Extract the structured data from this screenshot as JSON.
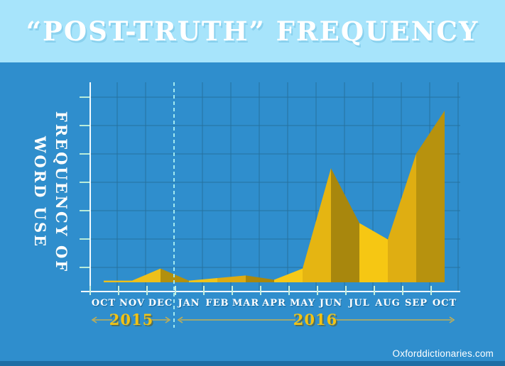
{
  "header": {
    "title": "“POST-TRUTH” FREQUENCY"
  },
  "ylabel": {
    "line1": "FREQUENCY OF",
    "line2": "WORD USE"
  },
  "footer": {
    "credit": "Oxforddictionaries.com"
  },
  "colors": {
    "header_bg": "#a7e4fb",
    "body_bg": "#2f8ecd",
    "bottom_band": "#1e6da4",
    "gridline": "#26719f",
    "axis": "#f2fbff",
    "y_tick": "#b9ecd9",
    "x_tick": "#c4eede",
    "divider_dash": "#a2e9f0",
    "year_text": "#f3c313",
    "year_arrow": "#c3af54",
    "title_text": "#ffffff",
    "month_text": "#ffffff"
  },
  "chart_data": {
    "type": "area",
    "title": "“POST-TRUTH” FREQUENCY",
    "ylabel": "FREQUENCY OF WORD USE",
    "xlabel": "",
    "x_categories": [
      "OCT 2015",
      "NOV 2015",
      "DEC 2015",
      "JAN 2016",
      "FEB 2016",
      "MAR 2016",
      "APR 2016",
      "MAY 2016",
      "JUN 2016",
      "JUL 2016",
      "AUG 2016",
      "SEP 2016",
      "OCT 2016"
    ],
    "month_labels": [
      "OCT",
      "NOV",
      "DEC",
      "JAN",
      "FEB",
      "MAR",
      "APR",
      "MAY",
      "JUN",
      "JUL",
      "AUG",
      "SEP",
      "OCT"
    ],
    "year_groups": [
      {
        "label": "2015",
        "months": [
          "OCT",
          "NOV",
          "DEC"
        ]
      },
      {
        "label": "2016",
        "months": [
          "JAN",
          "FEB",
          "MAR",
          "APR",
          "MAY",
          "JUN",
          "JUL",
          "AUG",
          "SEP",
          "OCT"
        ]
      }
    ],
    "values_relative_pct": [
      1,
      1,
      8,
      1,
      2.5,
      4,
      1.5,
      8,
      66.5,
      34.5,
      25,
      75,
      100
    ],
    "ylim": [
      0,
      100
    ],
    "y_tick_labels_shown": false,
    "grid": "on",
    "divider_note": "dashed vertical line separates 2015 and 2016",
    "segment_colors": [
      "#efc01a",
      "#eec01a",
      "#b2900e",
      "#f0c41a",
      "#ddab12",
      "#a9870c",
      "#f7c917",
      "#e5b512",
      "#a8870d",
      "#f6c713",
      "#dfae12",
      "#b7920e"
    ]
  }
}
